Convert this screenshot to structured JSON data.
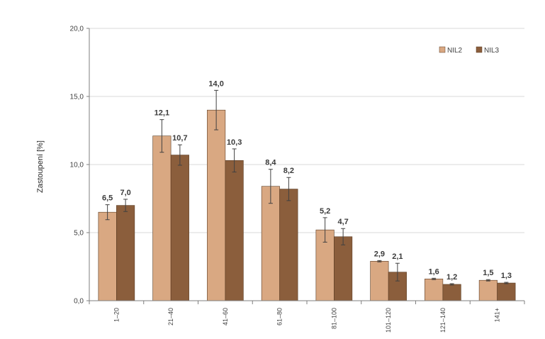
{
  "chart_data": {
    "type": "bar",
    "title": "",
    "xlabel": "",
    "ylabel": "Zastoupení [%]",
    "ylim": [
      0,
      20
    ],
    "yticks": [
      "0,0",
      "5,0",
      "10,0",
      "15,0",
      "20,0"
    ],
    "ytick_values": [
      0,
      5,
      10,
      15,
      20
    ],
    "grid": true,
    "legend_position": "top-right",
    "categories": [
      "1–20",
      "21–40",
      "41–60",
      "61–80",
      "81–100",
      "101–120",
      "121–140",
      "141+"
    ],
    "series": [
      {
        "name": "NIL2",
        "color": "#d9a882",
        "values": [
          6.5,
          12.1,
          14.0,
          8.4,
          5.2,
          2.9,
          1.6,
          1.5
        ],
        "labels": [
          "6,5",
          "12,1",
          "14,0",
          "8,4",
          "5,2",
          "2,9",
          "1,6",
          "1,5"
        ],
        "errors": [
          0.55,
          1.2,
          1.45,
          1.25,
          0.9,
          0.05,
          0.05,
          0.05
        ]
      },
      {
        "name": "NIL3",
        "color": "#8b5e3c",
        "values": [
          7.0,
          10.7,
          10.3,
          8.2,
          4.7,
          2.1,
          1.2,
          1.3
        ],
        "labels": [
          "7,0",
          "10,7",
          "10,3",
          "8,2",
          "4,7",
          "2,1",
          "1,2",
          "1,3"
        ],
        "errors": [
          0.45,
          0.75,
          0.85,
          0.85,
          0.6,
          0.65,
          0.05,
          0.05
        ]
      }
    ]
  }
}
